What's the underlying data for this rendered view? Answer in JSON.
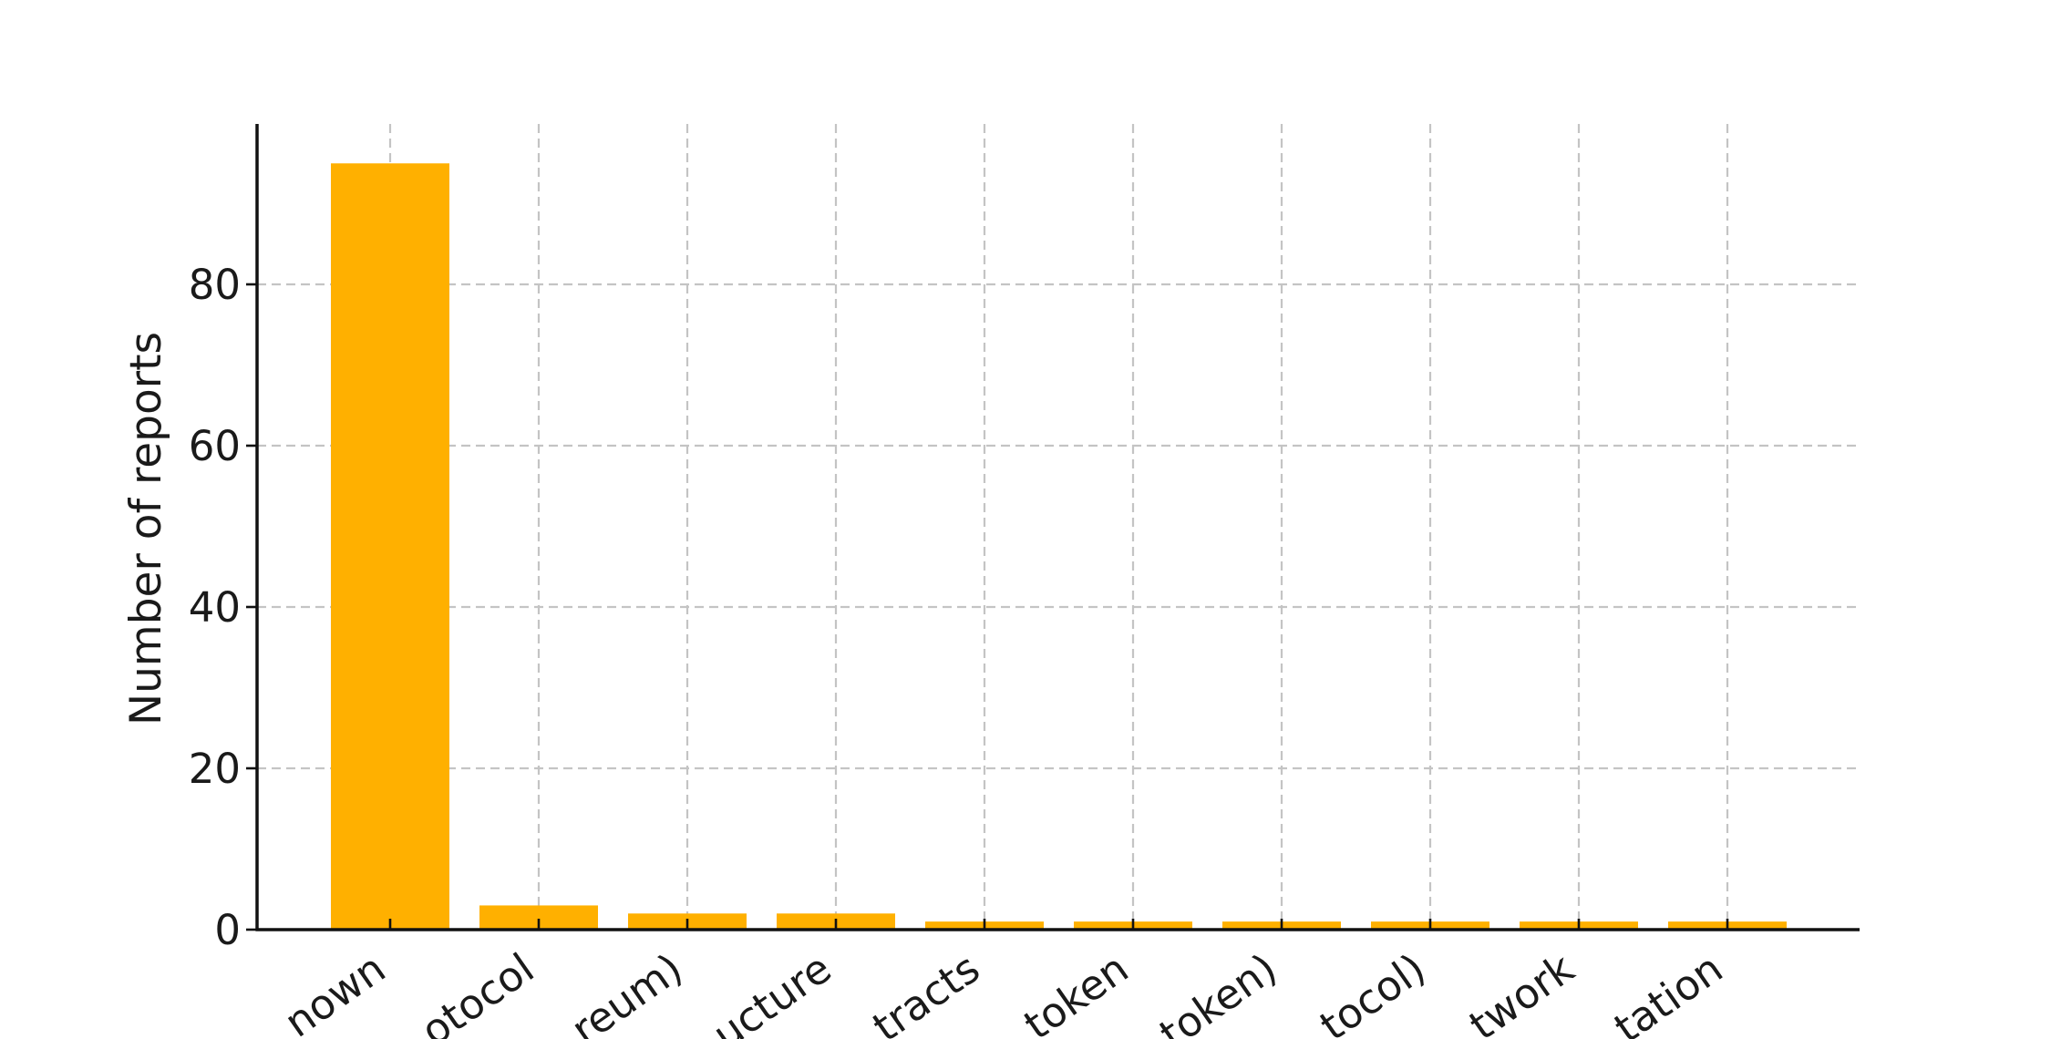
{
  "chart_data": {
    "type": "bar",
    "categories": [
      "nown",
      "otocol",
      "reum)",
      "ucture",
      "tracts",
      "token",
      "token)",
      "tocol)",
      "twork",
      "tation"
    ],
    "values": [
      95,
      3,
      2,
      2,
      1,
      1,
      1,
      1,
      1,
      1
    ],
    "title": "",
    "xlabel": "",
    "ylabel": "Number of reports",
    "ylim": [
      0,
      100
    ],
    "yticks": [
      0,
      20,
      40,
      60,
      80
    ],
    "bar_color": "#FFB000",
    "grid": true,
    "grid_style": "dashed",
    "legend": "none"
  }
}
